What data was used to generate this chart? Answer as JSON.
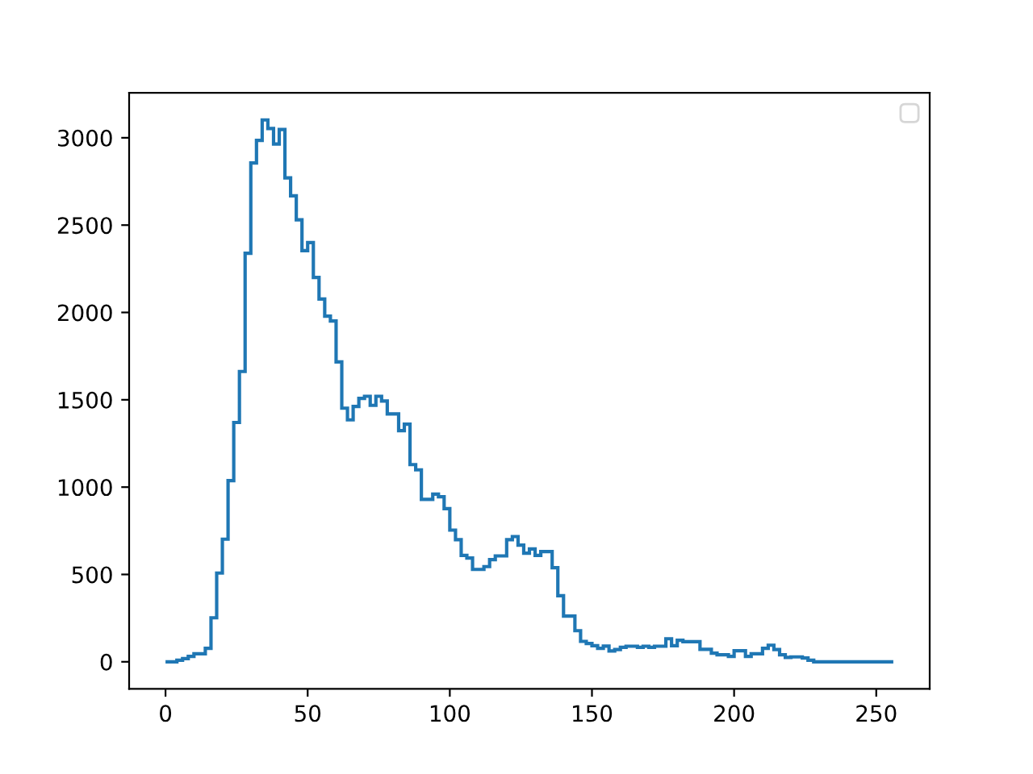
{
  "chart_data": {
    "type": "histogram",
    "bins": [
      0,
      2,
      4,
      6,
      8,
      10,
      12,
      14,
      16,
      18,
      20,
      22,
      24,
      26,
      28,
      30,
      32,
      34,
      36,
      38,
      40,
      42,
      44,
      46,
      48,
      50,
      52,
      54,
      56,
      58,
      60,
      62,
      64,
      66,
      68,
      70,
      72,
      74,
      76,
      78,
      80,
      82,
      84,
      86,
      88,
      90,
      92,
      94,
      96,
      98,
      100,
      102,
      104,
      106,
      108,
      110,
      112,
      114,
      116,
      118,
      120,
      122,
      124,
      126,
      128,
      130,
      132,
      134,
      136,
      138,
      140,
      142,
      144,
      146,
      148,
      150,
      152,
      154,
      156,
      158,
      160,
      162,
      164,
      166,
      168,
      170,
      172,
      174,
      176,
      178,
      180,
      182,
      184,
      186,
      188,
      190,
      192,
      194,
      196,
      198,
      200,
      202,
      204,
      206,
      208,
      210,
      212,
      214,
      216,
      218,
      220,
      222,
      224,
      226,
      228,
      230,
      232,
      234,
      236,
      238,
      240,
      242,
      244,
      246,
      248,
      250,
      252,
      254,
      256
    ],
    "values": [
      0,
      0,
      9,
      18,
      31,
      46,
      46,
      77,
      252,
      508,
      702,
      1037,
      1370,
      1662,
      2339,
      2856,
      2985,
      3102,
      3053,
      2964,
      3047,
      2770,
      2668,
      2530,
      2354,
      2400,
      2200,
      2077,
      1979,
      1951,
      1717,
      1452,
      1385,
      1462,
      1508,
      1520,
      1468,
      1520,
      1493,
      1419,
      1419,
      1323,
      1360,
      1129,
      1099,
      930,
      930,
      960,
      945,
      877,
      754,
      699,
      609,
      594,
      529,
      529,
      545,
      585,
      606,
      606,
      699,
      717,
      668,
      622,
      646,
      609,
      631,
      631,
      539,
      378,
      262,
      262,
      178,
      117,
      105,
      92,
      77,
      90,
      62,
      70,
      83,
      89,
      89,
      83,
      89,
      83,
      89,
      89,
      132,
      92,
      123,
      115,
      115,
      115,
      71,
      71,
      49,
      40,
      40,
      31,
      63,
      63,
      31,
      46,
      46,
      77,
      95,
      70,
      40,
      25,
      28,
      28,
      22,
      9,
      0,
      0,
      0,
      0,
      0,
      0,
      0,
      0,
      0,
      0,
      0,
      0,
      0,
      0
    ],
    "color": "#1f77b4",
    "xlim": [
      -12.8,
      268.8
    ],
    "ylim": [
      -155,
      3257
    ],
    "xticks": [
      0,
      50,
      100,
      150,
      200,
      250
    ],
    "yticks": [
      0,
      500,
      1000,
      1500,
      2000,
      2500,
      3000
    ],
    "grid": false
  }
}
